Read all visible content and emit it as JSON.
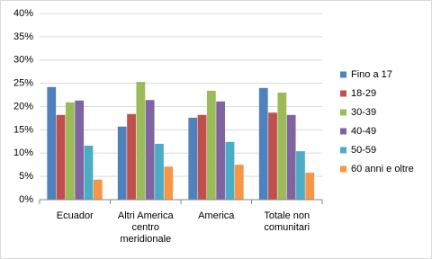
{
  "chart_data": {
    "type": "bar",
    "categories": [
      "Ecuador",
      "Altri America centro meridionale",
      "America",
      "Totale non comunitari"
    ],
    "series": [
      {
        "name": "Fino a 17",
        "color": "#4f81bd",
        "values": [
          24.2,
          15.7,
          17.6,
          24.0
        ]
      },
      {
        "name": "18-29",
        "color": "#c0504d",
        "values": [
          18.2,
          18.4,
          18.2,
          18.7
        ]
      },
      {
        "name": "30-39",
        "color": "#9bbb59",
        "values": [
          20.9,
          25.3,
          23.4,
          23.0
        ]
      },
      {
        "name": "40-49",
        "color": "#8064a2",
        "values": [
          21.3,
          21.4,
          21.1,
          18.2
        ]
      },
      {
        "name": "50-59",
        "color": "#4bacc6",
        "values": [
          11.6,
          12.0,
          12.4,
          10.4
        ]
      },
      {
        "name": "60 anni e oltre",
        "color": "#f79646",
        "values": [
          4.3,
          7.1,
          7.5,
          5.8
        ]
      }
    ],
    "ylim": [
      0,
      40
    ],
    "yticks": [
      {
        "value": 0,
        "label": "0%"
      },
      {
        "value": 5,
        "label": "5%"
      },
      {
        "value": 10,
        "label": "10%"
      },
      {
        "value": 15,
        "label": "15%"
      },
      {
        "value": 20,
        "label": "20%"
      },
      {
        "value": 25,
        "label": "25%"
      },
      {
        "value": 30,
        "label": "30%"
      },
      {
        "value": 35,
        "label": "35%"
      },
      {
        "value": 40,
        "label": "40%"
      }
    ],
    "grid": true,
    "legend": "right"
  }
}
